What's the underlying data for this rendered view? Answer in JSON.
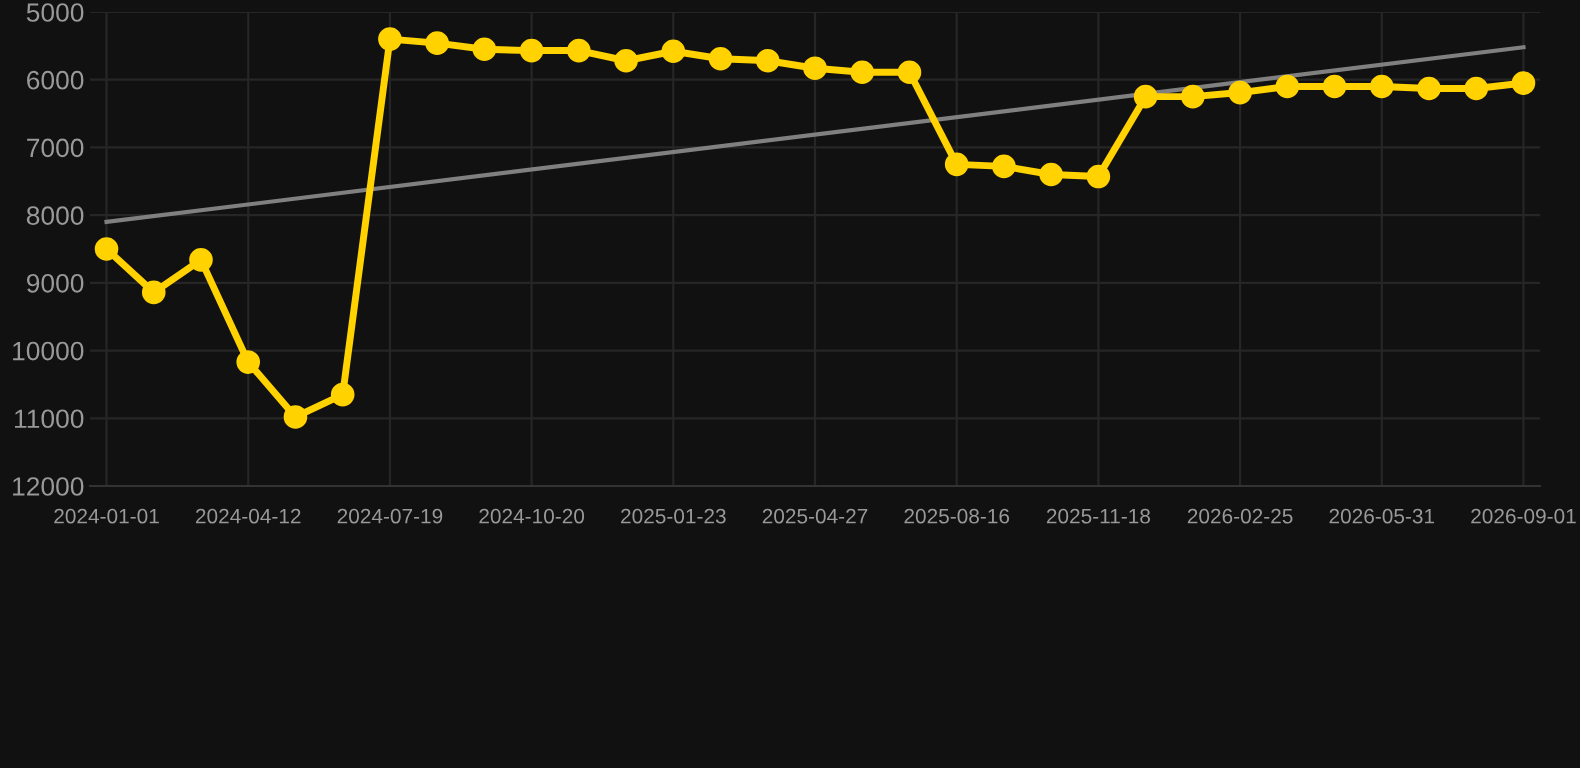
{
  "chart_data": {
    "type": "line",
    "categories": [
      "2024-01-01",
      null,
      null,
      "2024-04-12",
      null,
      null,
      "2024-07-19",
      null,
      null,
      "2024-10-20",
      null,
      null,
      "2025-01-23",
      null,
      null,
      "2025-04-27",
      null,
      null,
      "2025-08-16",
      null,
      null,
      "2025-11-18",
      null,
      null,
      "2026-02-25",
      null,
      null,
      "2026-05-31",
      null,
      null,
      "2026-09-01"
    ],
    "series": [
      {
        "color": "#ffd200",
        "marker": "circle",
        "values": [
          8500,
          9140,
          8660,
          10170,
          10980,
          10650,
          5400,
          5460,
          5550,
          5570,
          5570,
          5720,
          5580,
          5690,
          5720,
          5830,
          5890,
          5890,
          7250,
          7280,
          7400,
          7430,
          6250,
          6250,
          6190,
          6100,
          6100,
          6100,
          6130,
          6130,
          6050
        ]
      },
      {
        "type": "line",
        "color": "#808080",
        "marker": "none",
        "values": [
          8100,
          null,
          null,
          null,
          null,
          null,
          null,
          null,
          null,
          null,
          null,
          null,
          null,
          null,
          null,
          null,
          null,
          null,
          null,
          null,
          null,
          null,
          null,
          null,
          null,
          null,
          null,
          null,
          null,
          null,
          5520
        ]
      }
    ],
    "ylim": [
      12000,
      5000
    ],
    "yticks": [
      5000,
      6000,
      7000,
      8000,
      9000,
      10000,
      11000,
      12000
    ],
    "grid": true
  }
}
